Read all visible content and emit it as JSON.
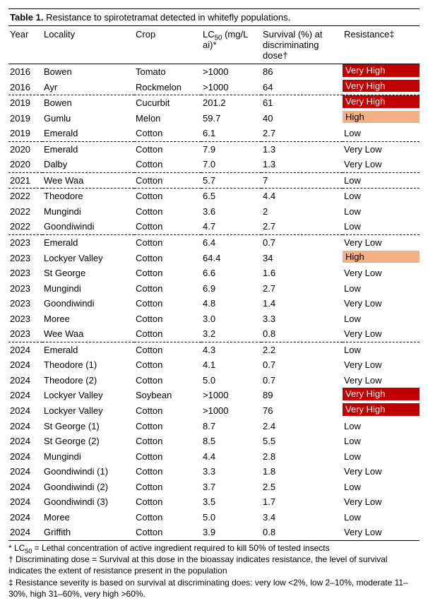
{
  "title_label": "Table 1.",
  "title_text": "Resistance to spirotetramat detected in whitefly populations.",
  "columns": {
    "year": "Year",
    "locality": "Locality",
    "crop": "Crop",
    "lc50_pre": "LC",
    "lc50_sub": "50",
    "lc50_post": " (mg/L ai)*",
    "survival": "Survival (%) at discriminating dose†",
    "resistance": "Resistance‡"
  },
  "col_widths": {
    "year": "48px",
    "locality": "130px",
    "crop": "95px",
    "lc50": "85px",
    "survival": "115px",
    "resistance": "auto"
  },
  "severity_styles": {
    "Very High": "very-high",
    "High": "high"
  },
  "rows": [
    {
      "year": "2016",
      "locality": "Bowen",
      "crop": "Tomato",
      "lc50": ">1000",
      "survival": "86",
      "resistance": "Very High",
      "dashed": false
    },
    {
      "year": "2016",
      "locality": "Ayr",
      "crop": "Rockmelon",
      "lc50": ">1000",
      "survival": "64",
      "resistance": "Very High",
      "dashed": true
    },
    {
      "year": "2019",
      "locality": "Bowen",
      "crop": "Cucurbit",
      "lc50": "201.2",
      "survival": "61",
      "resistance": "Very High",
      "dashed": false
    },
    {
      "year": "2019",
      "locality": "Gumlu",
      "crop": "Melon",
      "lc50": "59.7",
      "survival": "40",
      "resistance": "High",
      "dashed": false
    },
    {
      "year": "2019",
      "locality": "Emerald",
      "crop": "Cotton",
      "lc50": "6.1",
      "survival": "2.7",
      "resistance": "Low",
      "dashed": true
    },
    {
      "year": "2020",
      "locality": "Emerald",
      "crop": "Cotton",
      "lc50": "7.9",
      "survival": "1.3",
      "resistance": "Very Low",
      "dashed": false
    },
    {
      "year": "2020",
      "locality": "Dalby",
      "crop": "Cotton",
      "lc50": "7.0",
      "survival": "1.3",
      "resistance": "Very Low",
      "dashed": true
    },
    {
      "year": "2021",
      "locality": "Wee Waa",
      "crop": "Cotton",
      "lc50": "5.7",
      "survival": "7",
      "resistance": "Low",
      "dashed": true
    },
    {
      "year": "2022",
      "locality": "Theodore",
      "crop": "Cotton",
      "lc50": "6.5",
      "survival": "4.4",
      "resistance": "Low",
      "dashed": false
    },
    {
      "year": "2022",
      "locality": "Mungindi",
      "crop": "Cotton",
      "lc50": "3.6",
      "survival": "2",
      "resistance": "Low",
      "dashed": false
    },
    {
      "year": "2022",
      "locality": "Goondiwindi",
      "crop": "Cotton",
      "lc50": "4.7",
      "survival": "2.7",
      "resistance": "Low",
      "dashed": true
    },
    {
      "year": "2023",
      "locality": "Emerald",
      "crop": "Cotton",
      "lc50": "6.4",
      "survival": "0.7",
      "resistance": "Very Low",
      "dashed": false
    },
    {
      "year": "2023",
      "locality": "Lockyer Valley",
      "crop": "Cotton",
      "lc50": "64.4",
      "survival": "34",
      "resistance": "High",
      "dashed": false
    },
    {
      "year": "2023",
      "locality": "St George",
      "crop": "Cotton",
      "lc50": "6.6",
      "survival": "1.6",
      "resistance": "Very Low",
      "dashed": false
    },
    {
      "year": "2023",
      "locality": "Mungindi",
      "crop": "Cotton",
      "lc50": "6.9",
      "survival": "2.7",
      "resistance": "Low",
      "dashed": false
    },
    {
      "year": "2023",
      "locality": "Goondiwindi",
      "crop": "Cotton",
      "lc50": "4.8",
      "survival": "1.4",
      "resistance": "Very Low",
      "dashed": false
    },
    {
      "year": "2023",
      "locality": "Moree",
      "crop": "Cotton",
      "lc50": "3.0",
      "survival": "3.3",
      "resistance": "Low",
      "dashed": false
    },
    {
      "year": "2023",
      "locality": "Wee Waa",
      "crop": "Cotton",
      "lc50": "3.2",
      "survival": "0.8",
      "resistance": "Very Low",
      "dashed": true
    },
    {
      "year": "2024",
      "locality": "Emerald",
      "crop": "Cotton",
      "lc50": "4.3",
      "survival": "2.2",
      "resistance": "Low",
      "dashed": false
    },
    {
      "year": "2024",
      "locality": "Theodore (1)",
      "crop": "Cotton",
      "lc50": "4.1",
      "survival": "0.7",
      "resistance": "Very Low",
      "dashed": false
    },
    {
      "year": "2024",
      "locality": "Theodore (2)",
      "crop": "Cotton",
      "lc50": "5.0",
      "survival": "0.7",
      "resistance": "Very Low",
      "dashed": false
    },
    {
      "year": "2024",
      "locality": "Lockyer Valley",
      "crop": "Soybean",
      "lc50": ">1000",
      "survival": "89",
      "resistance": "Very High",
      "dashed": false
    },
    {
      "year": "2024",
      "locality": "Lockyer Valley",
      "crop": "Cotton",
      "lc50": ">1000",
      "survival": "76",
      "resistance": "Very High",
      "dashed": false
    },
    {
      "year": "2024",
      "locality": "St George (1)",
      "crop": "Cotton",
      "lc50": "8.7",
      "survival": "2.4",
      "resistance": "Low",
      "dashed": false
    },
    {
      "year": "2024",
      "locality": "St George (2)",
      "crop": "Cotton",
      "lc50": "8.5",
      "survival": "5.5",
      "resistance": "Low",
      "dashed": false
    },
    {
      "year": "2024",
      "locality": "Mungindi",
      "crop": "Cotton",
      "lc50": "4.4",
      "survival": "2.8",
      "resistance": "Low",
      "dashed": false
    },
    {
      "year": "2024",
      "locality": "Goondiwindi (1)",
      "crop": "Cotton",
      "lc50": "3.3",
      "survival": "1.8",
      "resistance": "Very Low",
      "dashed": false
    },
    {
      "year": "2024",
      "locality": "Goondiwindi (2)",
      "crop": "Cotton",
      "lc50": "3.7",
      "survival": "2.5",
      "resistance": "Low",
      "dashed": false
    },
    {
      "year": "2024",
      "locality": "Goondiwindi (3)",
      "crop": "Cotton",
      "lc50": "3.5",
      "survival": "1.7",
      "resistance": "Very Low",
      "dashed": false
    },
    {
      "year": "2024",
      "locality": "Moree",
      "crop": "Cotton",
      "lc50": "5.0",
      "survival": "3.4",
      "resistance": "Low",
      "dashed": false
    },
    {
      "year": "2024",
      "locality": "Griffith",
      "crop": "Cotton",
      "lc50": "3.9",
      "survival": "0.8",
      "resistance": "Very Low",
      "dashed": false
    }
  ],
  "footnotes": {
    "a_pre": "* LC",
    "a_sub": "50",
    "a_post": " = Lethal concentration of active ingredient required to kill 50% of tested insects",
    "b": "† Discriminating dose = Survival at this dose in the bioassay indicates resistance, the level of survival indicates the extent of resistance present in the population",
    "c": "‡ Resistance severity is based on survival at discriminating does: very low <2%, low 2–10%, moderate 11–30%, high 31–60%, very high >60%."
  }
}
